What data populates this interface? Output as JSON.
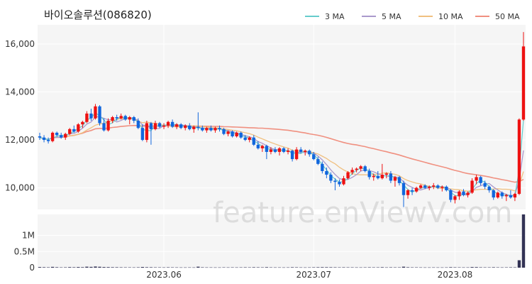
{
  "title": "바이오솔루션(086820)",
  "watermark": "feature.enViewV.com",
  "colors": {
    "up": "#ee1111",
    "down": "#1166dd",
    "ma3": "#66cccc",
    "ma5": "#aa99cc",
    "ma10": "#f0c080",
    "ma50": "#f09080",
    "volume": "#333355",
    "panel": "#f5f5f5",
    "grid": "#ffffff"
  },
  "chart_data": {
    "type": "candlestick",
    "price_axis": {
      "ylim": [
        9100,
        16800
      ],
      "ticks": [
        10000,
        12000,
        14000,
        16000
      ],
      "tick_labels": [
        "10,000",
        "12,000",
        "14,000",
        "16,000"
      ]
    },
    "volume_axis": {
      "ylim": [
        0,
        1650000
      ],
      "ticks": [
        0,
        500000,
        1000000
      ],
      "tick_labels": [
        "0",
        "0.5M",
        "1M"
      ]
    },
    "x_ticks": [
      {
        "index": 29,
        "label": "2023.06"
      },
      {
        "index": 64,
        "label": "2023.07"
      },
      {
        "index": 97,
        "label": "2023.08"
      }
    ],
    "legend": [
      {
        "key": "ma3",
        "label": "3 MA"
      },
      {
        "key": "ma5",
        "label": "5 MA"
      },
      {
        "key": "ma10",
        "label": "10 MA"
      },
      {
        "key": "ma50",
        "label": "50 MA"
      }
    ],
    "candles": [
      [
        12150,
        12300,
        12000,
        12100,
        20000
      ],
      [
        12100,
        12200,
        11900,
        12000,
        15000
      ],
      [
        12000,
        12100,
        11850,
        11950,
        12000
      ],
      [
        11950,
        12350,
        11900,
        12300,
        25000
      ],
      [
        12300,
        12350,
        12150,
        12200,
        15000
      ],
      [
        12200,
        12300,
        12050,
        12100,
        10000
      ],
      [
        12100,
        12300,
        12000,
        12250,
        12000
      ],
      [
        12250,
        12500,
        12200,
        12450,
        18000
      ],
      [
        12450,
        12600,
        12300,
        12350,
        14000
      ],
      [
        12350,
        12700,
        12300,
        12650,
        20000
      ],
      [
        12650,
        12800,
        12500,
        12750,
        16000
      ],
      [
        12750,
        13200,
        12700,
        13100,
        30000
      ],
      [
        13100,
        13300,
        12800,
        12900,
        25000
      ],
      [
        12900,
        13500,
        12850,
        13400,
        35000
      ],
      [
        13400,
        13450,
        12600,
        12700,
        28000
      ],
      [
        12700,
        12900,
        12350,
        12400,
        20000
      ],
      [
        12400,
        12900,
        12350,
        12800,
        18000
      ],
      [
        12800,
        13000,
        12700,
        12950,
        15000
      ],
      [
        12950,
        13050,
        12800,
        12900,
        14000
      ],
      [
        12900,
        13100,
        12850,
        13000,
        12000
      ],
      [
        13000,
        13050,
        12800,
        12850,
        11000
      ],
      [
        12850,
        13000,
        12650,
        12950,
        10000
      ],
      [
        12950,
        13000,
        12700,
        12800,
        9000
      ],
      [
        12800,
        12900,
        12450,
        12500,
        12000
      ],
      [
        12500,
        12650,
        11950,
        12000,
        22000
      ],
      [
        12000,
        12800,
        11900,
        12700,
        15000
      ],
      [
        12700,
        12750,
        11800,
        12450,
        14000
      ],
      [
        12450,
        12800,
        12400,
        12700,
        11000
      ],
      [
        12700,
        12750,
        12500,
        12550,
        10000
      ],
      [
        12550,
        12700,
        12450,
        12600,
        9000
      ],
      [
        12600,
        12800,
        12500,
        12750,
        12000
      ],
      [
        12750,
        12850,
        12500,
        12550,
        10000
      ],
      [
        12550,
        12700,
        12450,
        12650,
        9000
      ],
      [
        12650,
        12700,
        12450,
        12500,
        8000
      ],
      [
        12500,
        12650,
        12400,
        12600,
        8000
      ],
      [
        12600,
        12700,
        12400,
        12450,
        9000
      ],
      [
        12450,
        12600,
        12300,
        12550,
        8000
      ],
      [
        12550,
        13150,
        12400,
        12500,
        30000
      ],
      [
        12500,
        12600,
        12350,
        12400,
        12000
      ],
      [
        12400,
        12550,
        12300,
        12500,
        9000
      ],
      [
        12500,
        12600,
        12350,
        12400,
        9000
      ],
      [
        12400,
        12550,
        12300,
        12500,
        8000
      ],
      [
        12500,
        12600,
        12350,
        12450,
        8000
      ],
      [
        12450,
        12500,
        12200,
        12250,
        10000
      ],
      [
        12250,
        12400,
        12150,
        12350,
        9000
      ],
      [
        12350,
        12400,
        12100,
        12150,
        10000
      ],
      [
        12150,
        12350,
        12100,
        12300,
        9000
      ],
      [
        12300,
        12350,
        12050,
        12100,
        10000
      ],
      [
        12100,
        12200,
        11950,
        12000,
        12000
      ],
      [
        12000,
        12150,
        11900,
        12100,
        10000
      ],
      [
        12100,
        12200,
        11750,
        11800,
        14000
      ],
      [
        11800,
        11950,
        11600,
        11650,
        12000
      ],
      [
        11650,
        11800,
        11500,
        11750,
        10000
      ],
      [
        11750,
        11800,
        11200,
        11500,
        16000
      ],
      [
        11500,
        11700,
        11400,
        11600,
        10000
      ],
      [
        11600,
        11700,
        11450,
        11500,
        9000
      ],
      [
        11500,
        11700,
        11350,
        11650,
        9000
      ],
      [
        11650,
        11700,
        11450,
        11500,
        8000
      ],
      [
        11500,
        11650,
        11400,
        11550,
        9000
      ],
      [
        11550,
        11600,
        11100,
        11200,
        14000
      ],
      [
        11200,
        11700,
        11150,
        11600,
        12000
      ],
      [
        11600,
        11700,
        11450,
        11500,
        9000
      ],
      [
        11500,
        11600,
        11350,
        11550,
        8000
      ],
      [
        11550,
        11600,
        11300,
        11400,
        9000
      ],
      [
        11400,
        11500,
        11150,
        11200,
        12000
      ],
      [
        11200,
        11300,
        10950,
        11000,
        14000
      ],
      [
        11000,
        11100,
        10600,
        10700,
        16000
      ],
      [
        10700,
        10850,
        10400,
        10550,
        15000
      ],
      [
        10550,
        10650,
        10200,
        10300,
        14000
      ],
      [
        10300,
        10400,
        9900,
        10250,
        12000
      ],
      [
        10250,
        10350,
        10050,
        10150,
        10000
      ],
      [
        10150,
        10500,
        10100,
        10400,
        12000
      ],
      [
        10400,
        10700,
        10350,
        10650,
        11000
      ],
      [
        10650,
        10850,
        10550,
        10750,
        10000
      ],
      [
        10750,
        10850,
        10650,
        10800,
        9000
      ],
      [
        10800,
        10950,
        10700,
        10900,
        9000
      ],
      [
        10900,
        10950,
        10650,
        10700,
        10000
      ],
      [
        10700,
        10800,
        10350,
        10450,
        12000
      ],
      [
        10450,
        10600,
        10300,
        10500,
        10000
      ],
      [
        10500,
        10700,
        10350,
        10400,
        11000
      ],
      [
        10400,
        11000,
        10350,
        10550,
        15000
      ],
      [
        10550,
        10650,
        10400,
        10600,
        9000
      ],
      [
        10600,
        10700,
        10200,
        10300,
        12000
      ],
      [
        10300,
        10500,
        10050,
        10450,
        10000
      ],
      [
        10450,
        10500,
        10100,
        10200,
        11000
      ],
      [
        10200,
        10300,
        9200,
        9700,
        30000
      ],
      [
        9700,
        9950,
        9550,
        9900,
        14000
      ],
      [
        9900,
        10000,
        9700,
        9850,
        10000
      ],
      [
        9850,
        10050,
        9800,
        10000,
        10000
      ],
      [
        10000,
        10150,
        9950,
        10100,
        9000
      ],
      [
        10100,
        10150,
        9950,
        10000,
        8000
      ],
      [
        10000,
        10100,
        9900,
        10050,
        8000
      ],
      [
        10050,
        10200,
        9950,
        10100,
        9000
      ],
      [
        10100,
        10150,
        9950,
        10000,
        8000
      ],
      [
        10000,
        10100,
        9850,
        10050,
        8000
      ],
      [
        10050,
        10100,
        9850,
        9900,
        9000
      ],
      [
        9900,
        9950,
        9400,
        9500,
        16000
      ],
      [
        9500,
        9700,
        9350,
        9650,
        12000
      ],
      [
        9650,
        9900,
        9500,
        9850,
        10000
      ],
      [
        9850,
        9950,
        9650,
        9700,
        9000
      ],
      [
        9700,
        9850,
        9600,
        9800,
        9000
      ],
      [
        9800,
        10400,
        9750,
        10300,
        20000
      ],
      [
        10300,
        10550,
        10150,
        10450,
        18000
      ],
      [
        10450,
        10500,
        10100,
        10200,
        12000
      ],
      [
        10200,
        10300,
        9950,
        10050,
        10000
      ],
      [
        10050,
        10100,
        9800,
        9900,
        10000
      ],
      [
        9900,
        9950,
        9500,
        9600,
        14000
      ],
      [
        9600,
        9850,
        9550,
        9800,
        10000
      ],
      [
        9800,
        9850,
        9550,
        9650,
        9000
      ],
      [
        9650,
        9750,
        9450,
        9700,
        10000
      ],
      [
        9700,
        9900,
        9550,
        9600,
        12000
      ],
      [
        9600,
        9800,
        9450,
        9750,
        11000
      ],
      [
        9750,
        12900,
        9700,
        12850,
        230000
      ],
      [
        12850,
        16500,
        12800,
        15900,
        1650000
      ]
    ]
  }
}
